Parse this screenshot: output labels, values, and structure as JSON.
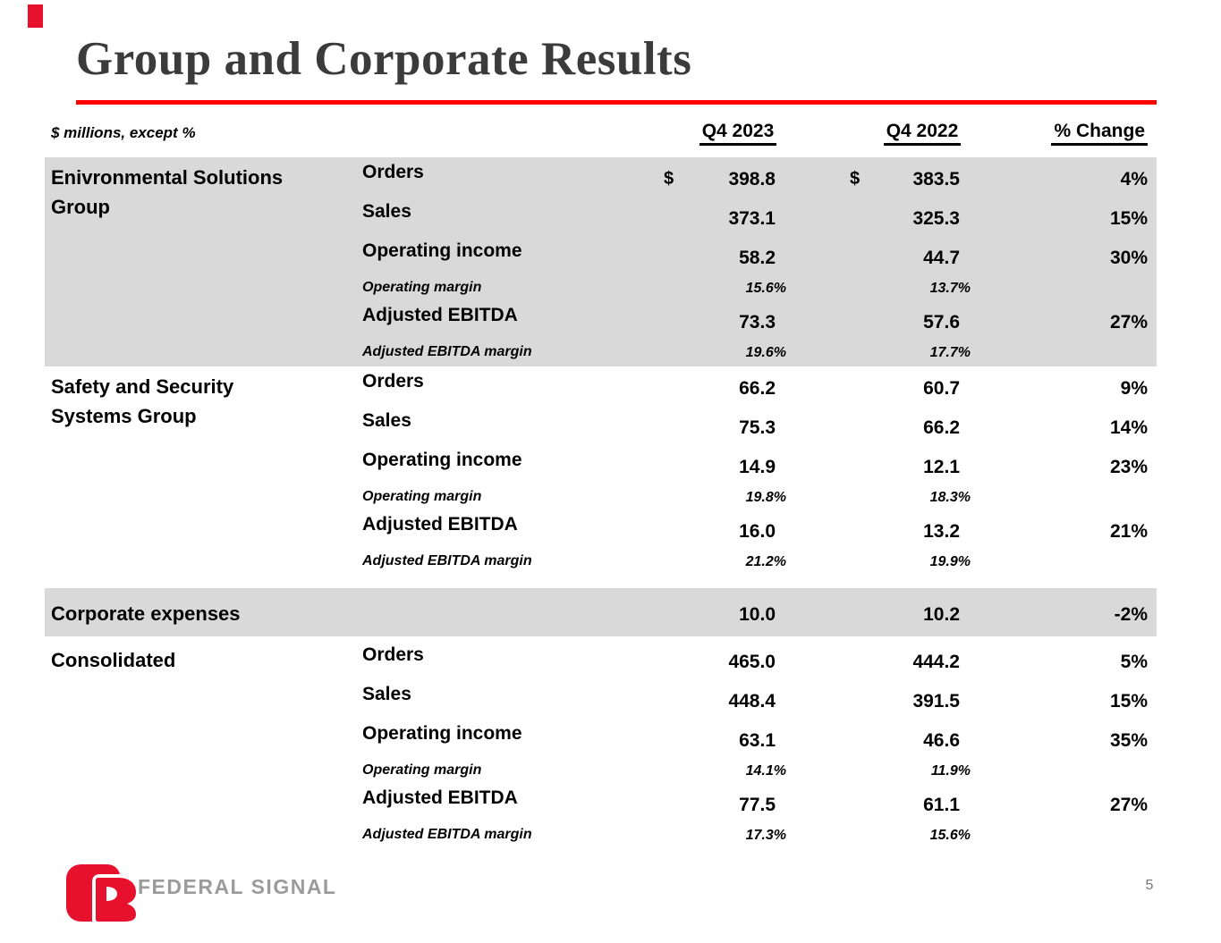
{
  "slide": {
    "title": "Group and Corporate Results",
    "page_number": "5",
    "footer_logo_text": "FEDERAL SIGNAL",
    "colors": {
      "accent_red": "#ff0000",
      "logo_red": "#e8112d",
      "band_gray": "#d9d9d9",
      "logo_text_gray": "#9b9b9b"
    }
  },
  "table": {
    "units_note": "$ millions, except %",
    "columns": [
      "Q4 2023",
      "Q4 2022",
      "% Change"
    ],
    "sections": [
      {
        "group": "Enivronmental Solutions Group",
        "shaded": true,
        "rows": [
          {
            "metric": "Orders",
            "kind": "value",
            "dollar": true,
            "q4_2023": "398.8",
            "q4_2022": "383.5",
            "change": "4%"
          },
          {
            "metric": "Sales",
            "kind": "value",
            "dollar": false,
            "q4_2023": "373.1",
            "q4_2022": "325.3",
            "change": "15%"
          },
          {
            "metric": "Operating income",
            "kind": "value",
            "dollar": false,
            "q4_2023": "58.2",
            "q4_2022": "44.7",
            "change": "30%"
          },
          {
            "metric": "Operating margin",
            "kind": "margin",
            "dollar": false,
            "q4_2023": "15.6%",
            "q4_2022": "13.7%",
            "change": ""
          },
          {
            "metric": "Adjusted EBITDA",
            "kind": "value",
            "dollar": false,
            "q4_2023": "73.3",
            "q4_2022": "57.6",
            "change": "27%"
          },
          {
            "metric": "Adjusted EBITDA margin",
            "kind": "margin",
            "dollar": false,
            "q4_2023": "19.6%",
            "q4_2022": "17.7%",
            "change": ""
          }
        ]
      },
      {
        "group": "Safety and Security Systems Group",
        "shaded": false,
        "rows": [
          {
            "metric": "Orders",
            "kind": "value",
            "dollar": false,
            "q4_2023": "66.2",
            "q4_2022": "60.7",
            "change": "9%"
          },
          {
            "metric": "Sales",
            "kind": "value",
            "dollar": false,
            "q4_2023": "75.3",
            "q4_2022": "66.2",
            "change": "14%"
          },
          {
            "metric": "Operating income",
            "kind": "value",
            "dollar": false,
            "q4_2023": "14.9",
            "q4_2022": "12.1",
            "change": "23%"
          },
          {
            "metric": "Operating margin",
            "kind": "margin",
            "dollar": false,
            "q4_2023": "19.8%",
            "q4_2022": "18.3%",
            "change": ""
          },
          {
            "metric": "Adjusted EBITDA",
            "kind": "value",
            "dollar": false,
            "q4_2023": "16.0",
            "q4_2022": "13.2",
            "change": "21%"
          },
          {
            "metric": "Adjusted EBITDA margin",
            "kind": "margin",
            "dollar": false,
            "q4_2023": "21.2%",
            "q4_2022": "19.9%",
            "change": ""
          }
        ]
      },
      {
        "group": "Corporate expenses",
        "shaded": true,
        "rows": [
          {
            "metric": "",
            "kind": "single",
            "dollar": false,
            "q4_2023": "10.0",
            "q4_2022": "10.2",
            "change": "-2%"
          }
        ]
      },
      {
        "group": "Consolidated",
        "shaded": false,
        "rows": [
          {
            "metric": "Orders",
            "kind": "value",
            "dollar": false,
            "q4_2023": "465.0",
            "q4_2022": "444.2",
            "change": "5%"
          },
          {
            "metric": "Sales",
            "kind": "value",
            "dollar": false,
            "q4_2023": "448.4",
            "q4_2022": "391.5",
            "change": "15%"
          },
          {
            "metric": "Operating income",
            "kind": "value",
            "dollar": false,
            "q4_2023": "63.1",
            "q4_2022": "46.6",
            "change": "35%"
          },
          {
            "metric": "Operating margin",
            "kind": "margin",
            "dollar": false,
            "q4_2023": "14.1%",
            "q4_2022": "11.9%",
            "change": ""
          },
          {
            "metric": "Adjusted EBITDA",
            "kind": "value",
            "dollar": false,
            "q4_2023": "77.5",
            "q4_2022": "61.1",
            "change": "27%"
          },
          {
            "metric": "Adjusted EBITDA margin",
            "kind": "margin",
            "dollar": false,
            "q4_2023": "17.3%",
            "q4_2022": "15.6%",
            "change": ""
          }
        ]
      }
    ]
  }
}
